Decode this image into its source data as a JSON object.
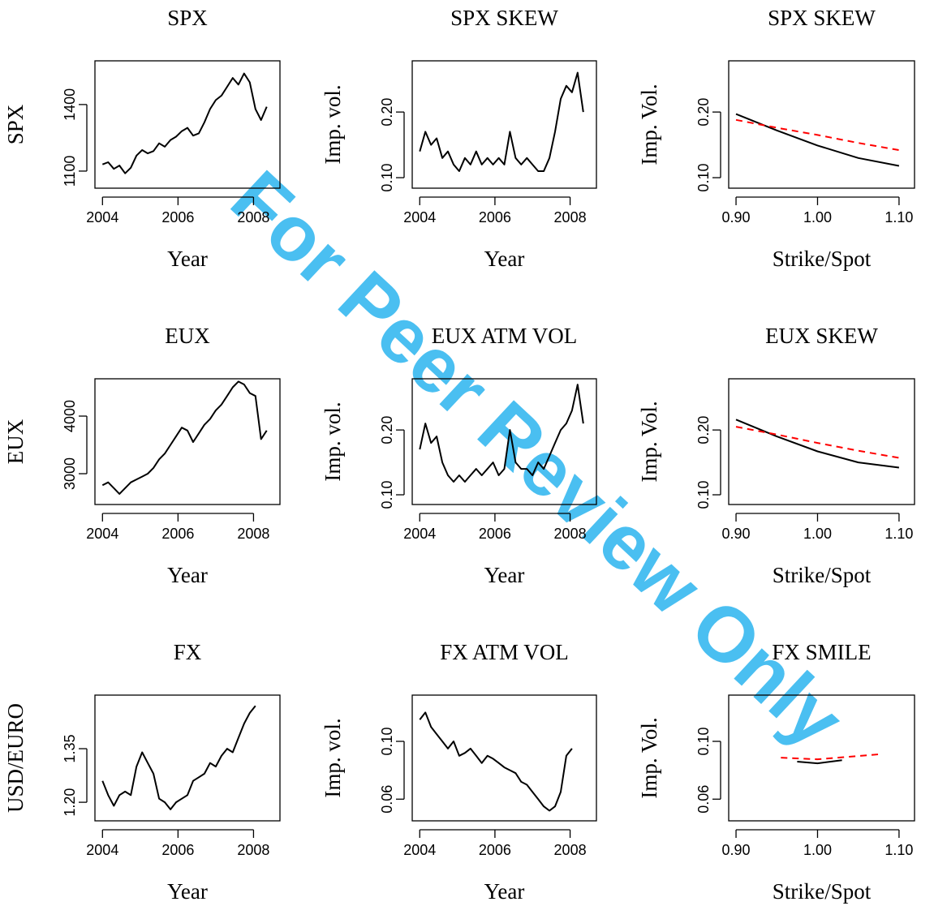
{
  "watermark": "For Peer Review Only",
  "chart_data": [
    {
      "type": "line",
      "title": "SPX",
      "x_label": "Year",
      "y_label": "SPX",
      "x": [
        2004.0,
        2004.15,
        2004.3,
        2004.45,
        2004.6,
        2004.75,
        2004.9,
        2005.05,
        2005.2,
        2005.35,
        2005.5,
        2005.65,
        2005.8,
        2005.95,
        2006.1,
        2006.25,
        2006.4,
        2006.55,
        2006.7,
        2006.85,
        2007.0,
        2007.15,
        2007.3,
        2007.45,
        2007.6,
        2007.75,
        2007.9,
        2008.05,
        2008.2,
        2008.35
      ],
      "series": [
        {
          "color": "#000000",
          "values": [
            1130,
            1140,
            1110,
            1125,
            1090,
            1115,
            1170,
            1195,
            1180,
            1190,
            1225,
            1210,
            1240,
            1255,
            1280,
            1295,
            1260,
            1270,
            1320,
            1380,
            1420,
            1440,
            1480,
            1520,
            1490,
            1540,
            1500,
            1380,
            1330,
            1390
          ]
        }
      ],
      "xlim": [
        2003.8,
        2008.7
      ],
      "ylim": [
        1023,
        1597
      ],
      "xticks": [
        2004,
        2006,
        2008
      ],
      "yticks": [
        1100,
        1400
      ]
    },
    {
      "type": "line",
      "title": "SPX SKEW",
      "x_label": "Year",
      "y_label": "Imp. vol.",
      "x": [
        2004.0,
        2004.15,
        2004.3,
        2004.45,
        2004.6,
        2004.75,
        2004.9,
        2005.05,
        2005.2,
        2005.35,
        2005.5,
        2005.65,
        2005.8,
        2005.95,
        2006.1,
        2006.25,
        2006.4,
        2006.55,
        2006.7,
        2006.85,
        2007.0,
        2007.15,
        2007.3,
        2007.45,
        2007.6,
        2007.75,
        2007.9,
        2008.05,
        2008.2,
        2008.35
      ],
      "series": [
        {
          "color": "#000000",
          "values": [
            0.14,
            0.17,
            0.15,
            0.16,
            0.13,
            0.14,
            0.12,
            0.11,
            0.13,
            0.12,
            0.14,
            0.12,
            0.13,
            0.12,
            0.13,
            0.12,
            0.17,
            0.13,
            0.12,
            0.13,
            0.12,
            0.11,
            0.11,
            0.13,
            0.17,
            0.22,
            0.24,
            0.23,
            0.26,
            0.2
          ]
        }
      ],
      "xlim": [
        2003.8,
        2008.7
      ],
      "ylim": [
        0.084,
        0.278
      ],
      "xticks": [
        2004,
        2006,
        2008
      ],
      "yticks": [
        {
          "value": 0.1,
          "label": "0.10"
        },
        {
          "value": 0.2,
          "label": "0.20"
        }
      ]
    },
    {
      "type": "line",
      "title": "SPX SKEW",
      "x_label": "Strike/Spot",
      "y_label": "Imp. Vol.",
      "series": [
        {
          "color": "#000000",
          "dashed": false,
          "x": [
            0.9,
            0.95,
            1.0,
            1.05,
            1.1
          ],
          "values": [
            0.197,
            0.172,
            0.149,
            0.13,
            0.118
          ]
        },
        {
          "color": "#ff0000",
          "dashed": true,
          "x": [
            0.9,
            0.95,
            1.0,
            1.05,
            1.1
          ],
          "values": [
            0.188,
            0.176,
            0.165,
            0.153,
            0.142
          ]
        }
      ],
      "xlim": [
        0.891,
        1.119
      ],
      "ylim": [
        0.084,
        0.278
      ],
      "xticks": [
        {
          "value": 0.9,
          "label": "0.90"
        },
        {
          "value": 1.0,
          "label": "1.00"
        },
        {
          "value": 1.1,
          "label": "1.10"
        }
      ],
      "yticks": [
        {
          "value": 0.1,
          "label": "0.10"
        },
        {
          "value": 0.2,
          "label": "0.20"
        }
      ]
    },
    {
      "type": "line",
      "title": "EUX",
      "x_label": "Year",
      "y_label": "EUX",
      "x": [
        2004.0,
        2004.15,
        2004.3,
        2004.45,
        2004.6,
        2004.75,
        2004.9,
        2005.05,
        2005.2,
        2005.35,
        2005.5,
        2005.65,
        2005.8,
        2005.95,
        2006.1,
        2006.25,
        2006.4,
        2006.55,
        2006.7,
        2006.85,
        2007.0,
        2007.15,
        2007.3,
        2007.45,
        2007.6,
        2007.75,
        2007.9,
        2008.05,
        2008.2,
        2008.35
      ],
      "series": [
        {
          "color": "#000000",
          "values": [
            2800,
            2850,
            2750,
            2650,
            2750,
            2850,
            2900,
            2950,
            3000,
            3100,
            3250,
            3350,
            3500,
            3650,
            3800,
            3750,
            3550,
            3700,
            3850,
            3950,
            4100,
            4200,
            4350,
            4500,
            4600,
            4550,
            4400,
            4350,
            3600,
            3750
          ]
        }
      ],
      "xlim": [
        2003.8,
        2008.7
      ],
      "ylim": [
        2465,
        4648
      ],
      "xticks": [
        2004,
        2006,
        2008
      ],
      "yticks": [
        3000,
        4000
      ]
    },
    {
      "type": "line",
      "title": "EUX ATM VOL",
      "x_label": "Year",
      "y_label": "Imp. vol.",
      "x": [
        2004.0,
        2004.15,
        2004.3,
        2004.45,
        2004.6,
        2004.75,
        2004.9,
        2005.05,
        2005.2,
        2005.35,
        2005.5,
        2005.65,
        2005.8,
        2005.95,
        2006.1,
        2006.25,
        2006.4,
        2006.55,
        2006.7,
        2006.85,
        2007.0,
        2007.15,
        2007.3,
        2007.45,
        2007.6,
        2007.75,
        2007.9,
        2008.05,
        2008.2,
        2008.35
      ],
      "series": [
        {
          "color": "#000000",
          "values": [
            0.17,
            0.21,
            0.18,
            0.19,
            0.15,
            0.13,
            0.12,
            0.13,
            0.12,
            0.13,
            0.14,
            0.13,
            0.14,
            0.15,
            0.13,
            0.14,
            0.2,
            0.15,
            0.14,
            0.14,
            0.13,
            0.15,
            0.14,
            0.16,
            0.18,
            0.2,
            0.21,
            0.23,
            0.27,
            0.21
          ]
        }
      ],
      "xlim": [
        2003.8,
        2008.7
      ],
      "ylim": [
        0.085,
        0.279
      ],
      "xticks": [
        2004,
        2006,
        2008
      ],
      "yticks": [
        {
          "value": 0.1,
          "label": "0.10"
        },
        {
          "value": 0.2,
          "label": "0.20"
        }
      ]
    },
    {
      "type": "line",
      "title": "EUX SKEW",
      "x_label": "Strike/Spot",
      "y_label": "Imp. Vol.",
      "series": [
        {
          "color": "#000000",
          "dashed": false,
          "x": [
            0.9,
            0.95,
            1.0,
            1.05,
            1.1
          ],
          "values": [
            0.216,
            0.19,
            0.167,
            0.15,
            0.142
          ]
        },
        {
          "color": "#ff0000",
          "dashed": true,
          "x": [
            0.9,
            0.95,
            1.0,
            1.05,
            1.1
          ],
          "values": [
            0.205,
            0.193,
            0.18,
            0.168,
            0.157
          ]
        }
      ],
      "xlim": [
        0.891,
        1.119
      ],
      "ylim": [
        0.085,
        0.279
      ],
      "xticks": [
        {
          "value": 0.9,
          "label": "0.90"
        },
        {
          "value": 1.0,
          "label": "1.00"
        },
        {
          "value": 1.1,
          "label": "1.10"
        }
      ],
      "yticks": [
        {
          "value": 0.1,
          "label": "0.10"
        },
        {
          "value": 0.2,
          "label": "0.20"
        }
      ]
    },
    {
      "type": "line",
      "title": "FX",
      "x_label": "Year",
      "y_label": "USD/EURO",
      "x": [
        2004.0,
        2004.15,
        2004.3,
        2004.45,
        2004.6,
        2004.75,
        2004.9,
        2005.05,
        2005.2,
        2005.35,
        2005.5,
        2005.65,
        2005.8,
        2005.95,
        2006.1,
        2006.25,
        2006.4,
        2006.55,
        2006.7,
        2006.85,
        2007.0,
        2007.15,
        2007.3,
        2007.45,
        2007.6,
        2007.75,
        2007.9,
        2008.05
      ],
      "series": [
        {
          "color": "#000000",
          "values": [
            1.26,
            1.22,
            1.19,
            1.22,
            1.23,
            1.22,
            1.3,
            1.34,
            1.31,
            1.28,
            1.21,
            1.2,
            1.18,
            1.2,
            1.21,
            1.22,
            1.26,
            1.27,
            1.28,
            1.31,
            1.3,
            1.33,
            1.35,
            1.34,
            1.38,
            1.42,
            1.45,
            1.47
          ]
        }
      ],
      "xlim": [
        2003.8,
        2008.7
      ],
      "ylim": [
        1.148,
        1.5
      ],
      "xticks": [
        2004,
        2006,
        2008
      ],
      "yticks": [
        {
          "value": 1.2,
          "label": "1.20"
        },
        {
          "value": 1.35,
          "label": "1.35"
        }
      ]
    },
    {
      "type": "line",
      "title": "FX ATM VOL",
      "x_label": "Year",
      "y_label": "Imp. vol.",
      "x": [
        2004.0,
        2004.15,
        2004.3,
        2004.45,
        2004.6,
        2004.75,
        2004.9,
        2005.05,
        2005.2,
        2005.35,
        2005.5,
        2005.65,
        2005.8,
        2005.95,
        2006.1,
        2006.25,
        2006.4,
        2006.55,
        2006.7,
        2006.85,
        2007.0,
        2007.15,
        2007.3,
        2007.45,
        2007.6,
        2007.75,
        2007.9,
        2008.05
      ],
      "series": [
        {
          "color": "#000000",
          "values": [
            0.115,
            0.12,
            0.11,
            0.105,
            0.1,
            0.095,
            0.1,
            0.09,
            0.092,
            0.095,
            0.09,
            0.085,
            0.09,
            0.088,
            0.085,
            0.082,
            0.08,
            0.078,
            0.072,
            0.07,
            0.065,
            0.06,
            0.055,
            0.052,
            0.055,
            0.065,
            0.09,
            0.095
          ]
        }
      ],
      "xlim": [
        2003.8,
        2008.7
      ],
      "ylim": [
        0.045,
        0.132
      ],
      "xticks": [
        2004,
        2006,
        2008
      ],
      "yticks": [
        {
          "value": 0.06,
          "label": "0.06"
        },
        {
          "value": 0.1,
          "label": "0.10"
        }
      ]
    },
    {
      "type": "line",
      "title": "FX SMILE",
      "x_label": "Strike/Spot",
      "y_label": "Imp. Vol.",
      "series": [
        {
          "color": "#000000",
          "dashed": false,
          "x": [
            0.975,
            1.0,
            1.03
          ],
          "values": [
            0.086,
            0.0848,
            0.087
          ]
        },
        {
          "color": "#ff0000",
          "dashed": true,
          "x": [
            0.955,
            1.0,
            1.075
          ],
          "values": [
            0.0887,
            0.0876,
            0.091
          ]
        }
      ],
      "xlim": [
        0.891,
        1.119
      ],
      "ylim": [
        0.045,
        0.132
      ],
      "xticks": [
        {
          "value": 0.9,
          "label": "0.90"
        },
        {
          "value": 1.0,
          "label": "1.00"
        },
        {
          "value": 1.1,
          "label": "1.10"
        }
      ],
      "yticks": [
        {
          "value": 0.06,
          "label": "0.06"
        },
        {
          "value": 0.1,
          "label": "0.10"
        }
      ]
    }
  ]
}
